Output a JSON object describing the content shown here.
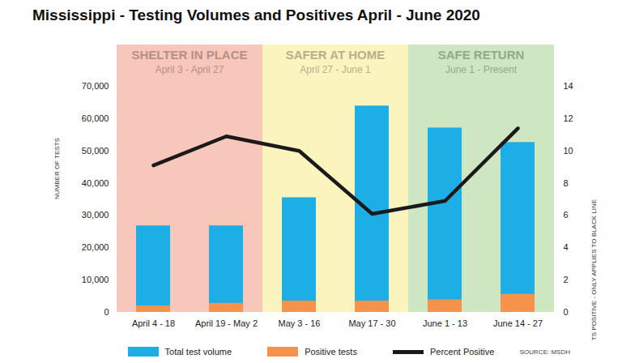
{
  "chart_data": {
    "type": "bar",
    "title": "Mississippi - Testing Volumes and Positives April - June 2020",
    "categories": [
      "April 4 - 18",
      "April 19 - May 2",
      "May 3 - 16",
      "May 17 - 30",
      "June 1 - 13",
      "June 14 - 27"
    ],
    "series": [
      {
        "name": "Total test volume",
        "type": "bar",
        "color": "#1eaee6",
        "values": [
          26800,
          26800,
          35500,
          63900,
          57100,
          52600
        ]
      },
      {
        "name": "Positive tests",
        "type": "bar",
        "color": "#f5934c",
        "values": [
          2000,
          2800,
          3500,
          3500,
          3900,
          5600
        ]
      },
      {
        "name": "Percent Positive",
        "type": "line",
        "color": "#1a1a1a",
        "axis": "y2",
        "values": [
          9.1,
          10.9,
          10.0,
          6.1,
          6.9,
          11.4
        ]
      }
    ],
    "stacked": false,
    "ylim": [
      0,
      70000
    ],
    "yticks": [
      0,
      {
        "value": 10000,
        "label": "10,000"
      },
      {
        "value": 20000,
        "label": "20,000"
      },
      {
        "value": 30000,
        "label": "30,000"
      },
      {
        "value": 40000,
        "label": "40,000"
      },
      {
        "value": 50000,
        "label": "50,000"
      },
      {
        "value": 60000,
        "label": "60,000"
      },
      {
        "value": 70000,
        "label": "70,000"
      }
    ],
    "y2lim": [
      0,
      14
    ],
    "y2ticks": [
      0,
      2,
      4,
      6,
      8,
      10,
      12,
      14
    ],
    "ylabel": "NUMBER OF TESTS",
    "y2label": "PERCENT TESTS POSITIVE - ONLY APPLIES TO BLACK LINE",
    "phases": [
      {
        "name": "SHELTER IN PLACE",
        "dates": "April 3 - April 27",
        "color": "#f8c7bb",
        "categories": [
          "April 4 - 18",
          "April 19 - May 2"
        ]
      },
      {
        "name": "SAFER AT HOME",
        "dates": "April 27 - June 1",
        "color": "#fbf4bf",
        "categories": [
          "May 3 - 16",
          "May 17 - 30"
        ]
      },
      {
        "name": "SAFE RETURN",
        "dates": "June 1 - Present",
        "color": "#cfe6c3",
        "categories": [
          "June 1 - 13",
          "June 14 - 27"
        ]
      }
    ],
    "source": "SOURCE: MSDH",
    "legend": "bottom"
  }
}
